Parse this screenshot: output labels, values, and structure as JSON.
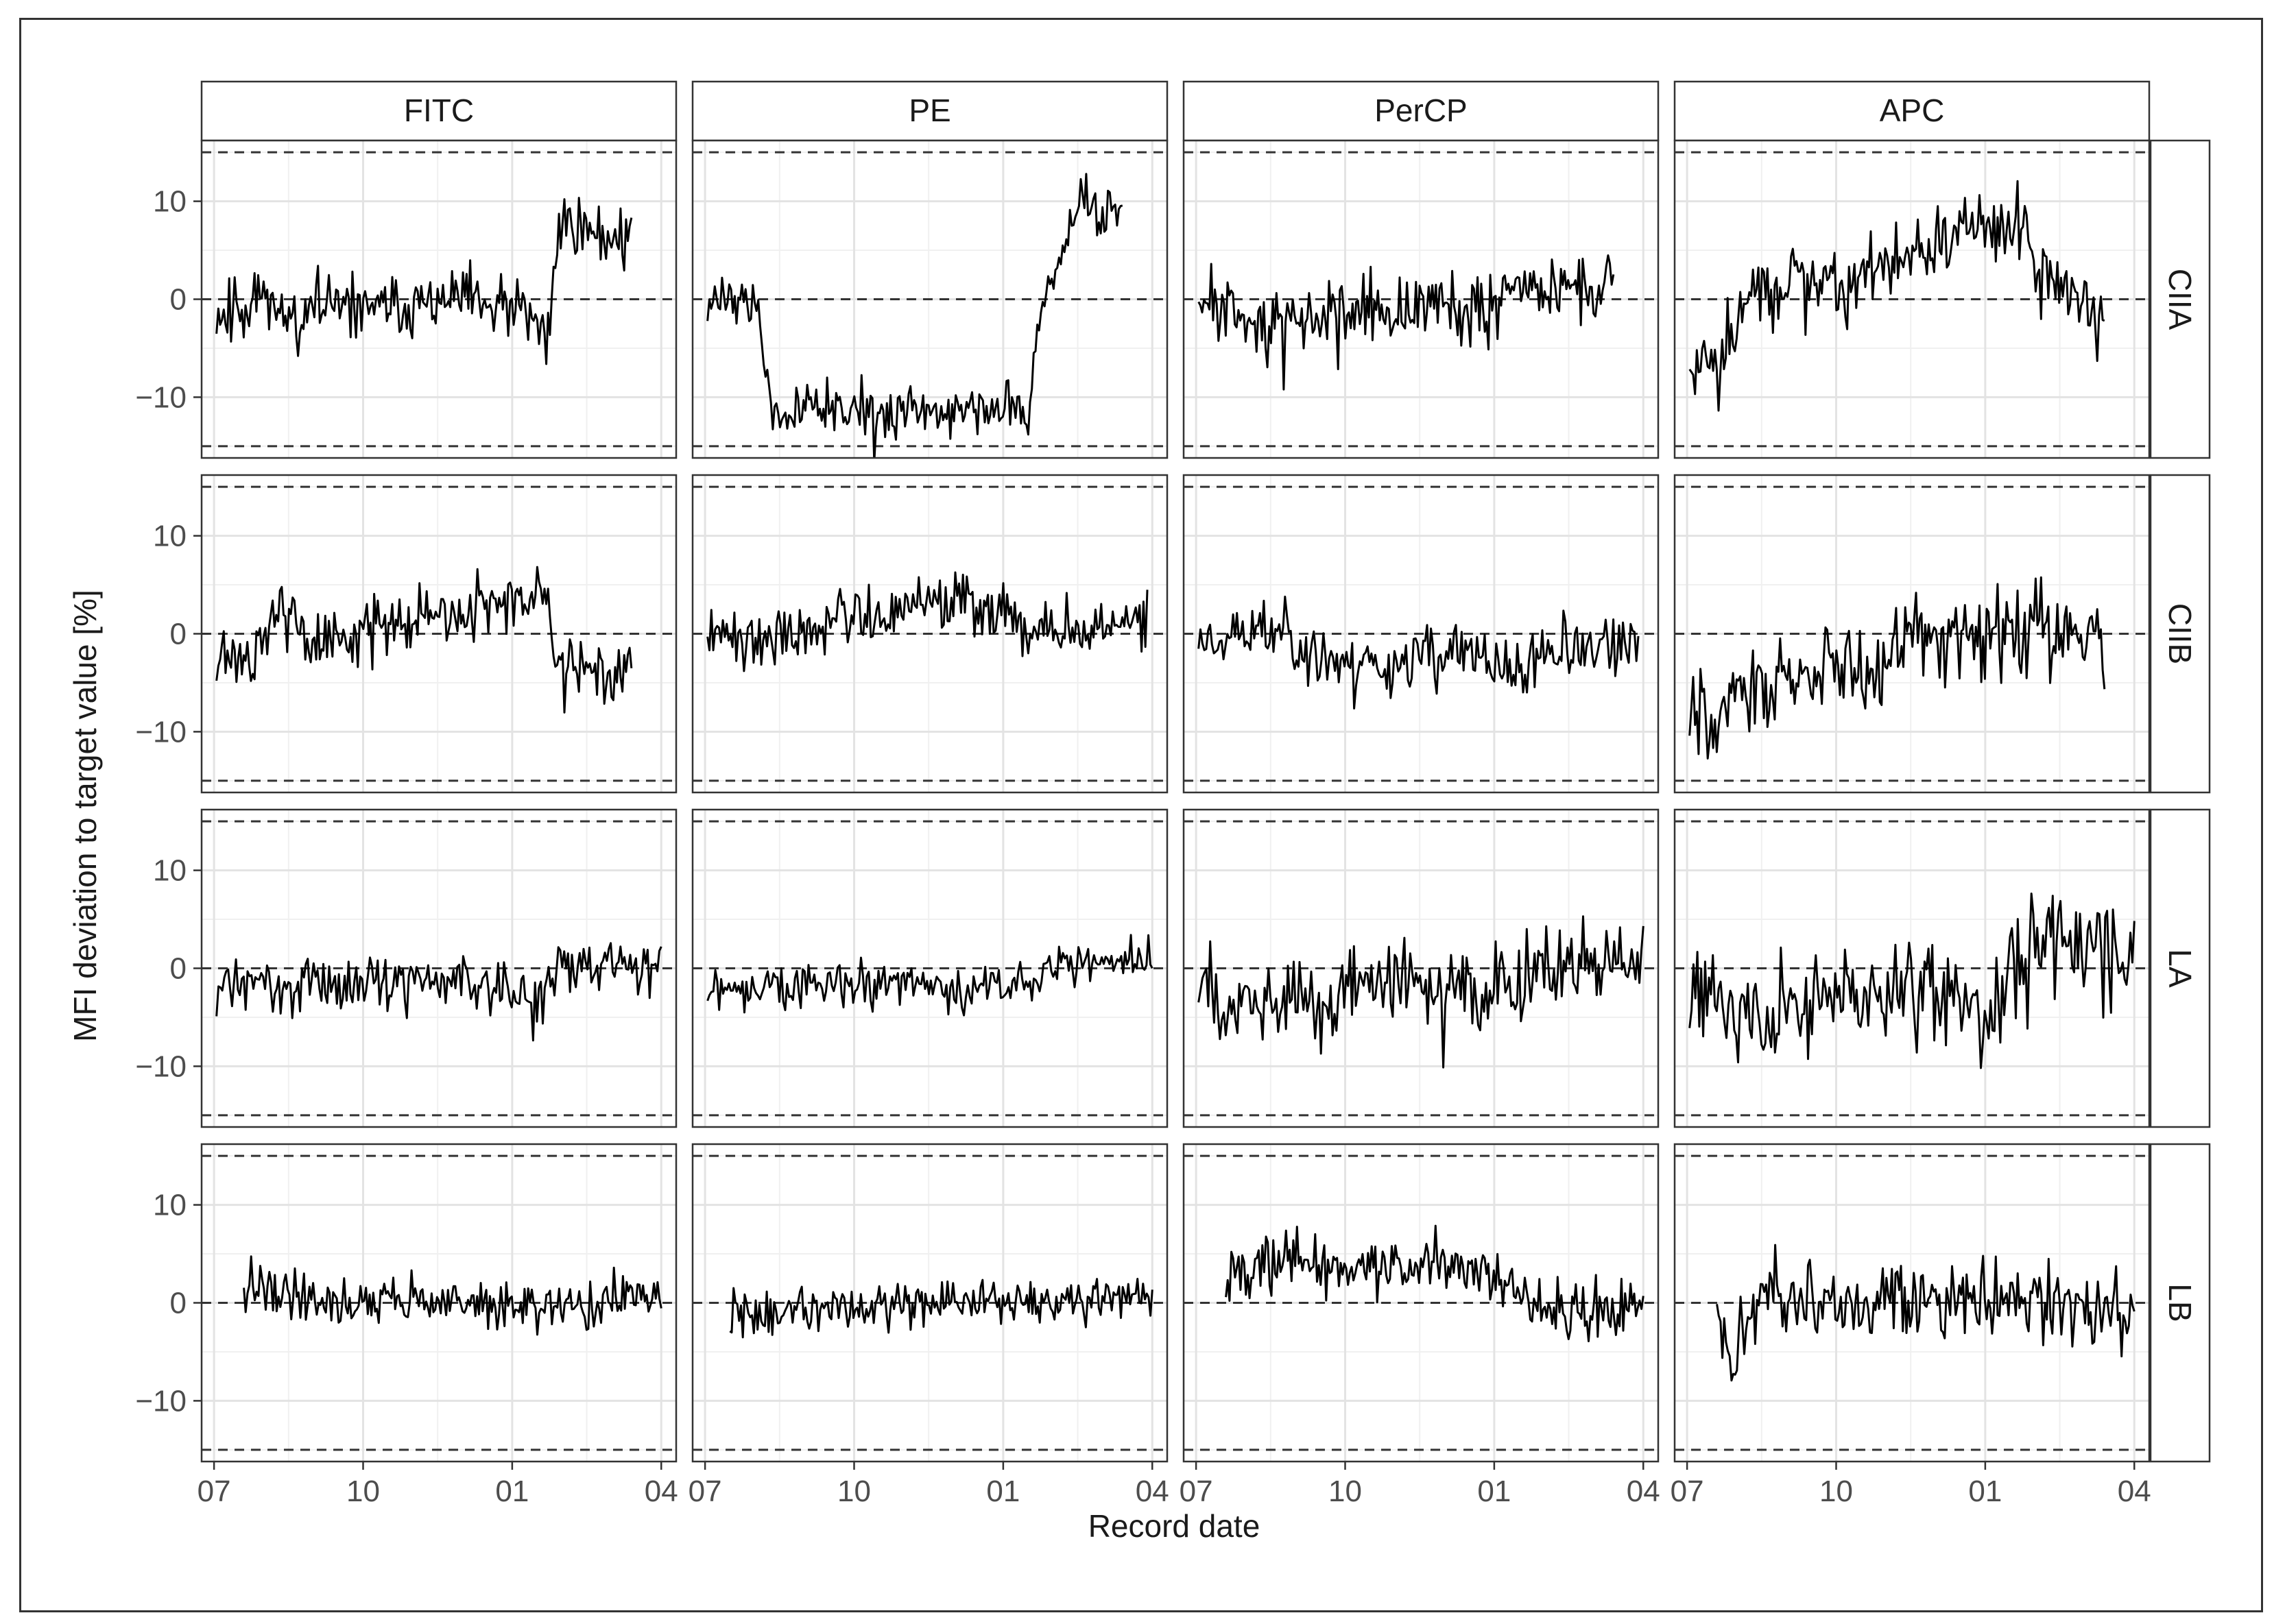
{
  "chart_data": {
    "type": "line",
    "xlabel": "Record date",
    "ylabel": "MFI deviation to target value [%]",
    "x_tick_labels": [
      "07",
      "10",
      "01",
      "04"
    ],
    "x_tick_positions_months_from_start": [
      0,
      3,
      6,
      9
    ],
    "x_range_months": [
      -0.25,
      9.3
    ],
    "y_ticks": [
      10,
      0,
      -10
    ],
    "y_tick_labels": [
      "10",
      "0",
      "−10"
    ],
    "ylim": [
      -16.2,
      16.2
    ],
    "reference_lines": [
      -15,
      0,
      15
    ],
    "reference_line_style": "dashed",
    "grid": true,
    "facet_columns": [
      "FITC",
      "PE",
      "PerCP",
      "APC"
    ],
    "facet_rows": [
      "CIIA",
      "CIIB",
      "LA",
      "LB"
    ],
    "line_color": "#000000",
    "panels": [
      {
        "col": "FITC",
        "row": "CIIA",
        "x_start": 0.05,
        "x_end": 8.4,
        "anchors": [
          [
            0.05,
            -1.5
          ],
          [
            0.5,
            -0.5
          ],
          [
            1,
            1
          ],
          [
            1.5,
            -2
          ],
          [
            2,
            -1
          ],
          [
            2.5,
            -1
          ],
          [
            3,
            -0.5
          ],
          [
            3.5,
            -1
          ],
          [
            4,
            -0.5
          ],
          [
            4.5,
            -0.5
          ],
          [
            5,
            0
          ],
          [
            5.5,
            -1
          ],
          [
            6,
            -1
          ],
          [
            6.5,
            -2.5
          ],
          [
            6.7,
            -5
          ],
          [
            6.85,
            4
          ],
          [
            7,
            8.5
          ],
          [
            7.5,
            7
          ],
          [
            8,
            6.5
          ],
          [
            8.4,
            6.5
          ]
        ],
        "noise": 1.6,
        "seed": 11
      },
      {
        "col": "PE",
        "row": "CIIA",
        "x_start": 0.05,
        "x_end": 8.4,
        "anchors": [
          [
            0.05,
            0
          ],
          [
            0.8,
            0
          ],
          [
            1.1,
            -2
          ],
          [
            1.35,
            -12
          ],
          [
            2,
            -11
          ],
          [
            3,
            -11.5
          ],
          [
            4,
            -11.5
          ],
          [
            5,
            -11
          ],
          [
            6.2,
            -11
          ],
          [
            6.5,
            -12.5
          ],
          [
            6.65,
            -5
          ],
          [
            6.9,
            1
          ],
          [
            7.3,
            6
          ],
          [
            7.6,
            10
          ],
          [
            8,
            8
          ],
          [
            8.4,
            8.5
          ]
        ],
        "noise": 1.3,
        "seed": 12
      },
      {
        "col": "PerCP",
        "row": "CIIA",
        "x_start": 0.05,
        "x_end": 8.4,
        "anchors": [
          [
            0.05,
            0
          ],
          [
            0.8,
            -1.5
          ],
          [
            1.5,
            -3
          ],
          [
            2.2,
            -2
          ],
          [
            3,
            -1.5
          ],
          [
            4,
            -1
          ],
          [
            5,
            -0.5
          ],
          [
            6,
            -0.5
          ],
          [
            7,
            1
          ],
          [
            7.5,
            1.5
          ],
          [
            8,
            0.5
          ],
          [
            8.4,
            1.5
          ]
        ],
        "noise": 1.7,
        "seed": 13
      },
      {
        "col": "APC",
        "row": "CIIA",
        "x_start": 0.05,
        "x_end": 8.4,
        "anchors": [
          [
            0.05,
            -6
          ],
          [
            0.3,
            -7.5
          ],
          [
            0.8,
            -4
          ],
          [
            1.2,
            0
          ],
          [
            2,
            1.5
          ],
          [
            3,
            1
          ],
          [
            4,
            3
          ],
          [
            4.8,
            6
          ],
          [
            5.5,
            7
          ],
          [
            6,
            8
          ],
          [
            6.5,
            8
          ],
          [
            6.8,
            7
          ],
          [
            7.1,
            2
          ],
          [
            7.7,
            0.5
          ],
          [
            8.2,
            -2
          ],
          [
            8.4,
            -1.5
          ]
        ],
        "noise": 1.9,
        "seed": 14
      },
      {
        "col": "FITC",
        "row": "CIIB",
        "x_start": 0.05,
        "x_end": 8.4,
        "anchors": [
          [
            0.05,
            -2
          ],
          [
            0.8,
            -2
          ],
          [
            1.2,
            3
          ],
          [
            1.6,
            2
          ],
          [
            2,
            -1
          ],
          [
            3,
            0
          ],
          [
            4,
            1.5
          ],
          [
            4.5,
            2.5
          ],
          [
            5,
            2
          ],
          [
            5.5,
            3
          ],
          [
            6,
            2.5
          ],
          [
            6.5,
            4
          ],
          [
            6.7,
            2
          ],
          [
            6.9,
            -2.5
          ],
          [
            7.5,
            -4
          ],
          [
            8,
            -4
          ],
          [
            8.4,
            -3
          ]
        ],
        "noise": 1.6,
        "seed": 21
      },
      {
        "col": "PE",
        "row": "CIIB",
        "x_start": 0.05,
        "x_end": 8.9,
        "anchors": [
          [
            0.05,
            0
          ],
          [
            1,
            -0.5
          ],
          [
            2,
            1
          ],
          [
            3,
            2
          ],
          [
            4,
            2.5
          ],
          [
            4.7,
            3.5
          ],
          [
            5.5,
            3
          ],
          [
            6,
            1
          ],
          [
            7,
            0.5
          ],
          [
            8,
            1
          ],
          [
            8.9,
            2
          ]
        ],
        "noise": 1.5,
        "seed": 22
      },
      {
        "col": "PerCP",
        "row": "CIIB",
        "x_start": 0.05,
        "x_end": 8.9,
        "anchors": [
          [
            0.05,
            -0.5
          ],
          [
            1,
            0
          ],
          [
            1.8,
            1
          ],
          [
            2.2,
            -2
          ],
          [
            3,
            -3
          ],
          [
            4,
            -3
          ],
          [
            5,
            -2
          ],
          [
            6,
            -3
          ],
          [
            6.5,
            -4.5
          ],
          [
            7,
            -2
          ],
          [
            8,
            -2
          ],
          [
            8.9,
            -1
          ]
        ],
        "noise": 1.6,
        "seed": 23
      },
      {
        "col": "APC",
        "row": "CIIB",
        "x_start": 0.05,
        "x_end": 8.4,
        "anchors": [
          [
            0.05,
            -8
          ],
          [
            0.4,
            -9
          ],
          [
            1,
            -6
          ],
          [
            2,
            -5
          ],
          [
            3,
            -3.5
          ],
          [
            4,
            -2
          ],
          [
            5,
            0
          ],
          [
            6,
            0
          ],
          [
            7,
            0.5
          ],
          [
            8,
            0
          ],
          [
            8.4,
            -0.5
          ]
        ],
        "noise": 2.2,
        "seed": 24
      },
      {
        "col": "FITC",
        "row": "LA",
        "x_start": 0.05,
        "x_end": 9.0,
        "anchors": [
          [
            0.05,
            -2
          ],
          [
            1,
            -1.5
          ],
          [
            2,
            -1.5
          ],
          [
            3,
            -1.5
          ],
          [
            4,
            -1.5
          ],
          [
            5,
            -1
          ],
          [
            6,
            -2
          ],
          [
            6.6,
            -3
          ],
          [
            7,
            0
          ],
          [
            8,
            0.5
          ],
          [
            9,
            0.5
          ]
        ],
        "noise": 1.3,
        "seed": 31
      },
      {
        "col": "PE",
        "row": "LA",
        "x_start": 0.05,
        "x_end": 9.0,
        "anchors": [
          [
            0.05,
            -2.5
          ],
          [
            1,
            -2
          ],
          [
            2,
            -1.5
          ],
          [
            3,
            -2
          ],
          [
            4,
            -1.5
          ],
          [
            5,
            -2.5
          ],
          [
            6,
            -2
          ],
          [
            6.5,
            -1
          ],
          [
            7,
            0.5
          ],
          [
            8,
            0.5
          ],
          [
            9,
            0.5
          ]
        ],
        "noise": 1.2,
        "seed": 32
      },
      {
        "col": "PerCP",
        "row": "LA",
        "x_start": 0.05,
        "x_end": 9.0,
        "anchors": [
          [
            0.05,
            -1
          ],
          [
            1,
            -3.5
          ],
          [
            2,
            -3
          ],
          [
            3,
            -2
          ],
          [
            4,
            -2
          ],
          [
            5,
            -2
          ],
          [
            6,
            -2.5
          ],
          [
            7,
            0
          ],
          [
            8,
            0.5
          ],
          [
            9,
            0
          ]
        ],
        "noise": 2.2,
        "seed": 33
      },
      {
        "col": "APC",
        "row": "LA",
        "x_start": 0.05,
        "x_end": 9.0,
        "anchors": [
          [
            0.05,
            -2
          ],
          [
            0.6,
            -4
          ],
          [
            1,
            -5.5
          ],
          [
            2,
            -4
          ],
          [
            3,
            -3
          ],
          [
            4,
            -2
          ],
          [
            5,
            -2
          ],
          [
            5.5,
            -3
          ],
          [
            6,
            -3.5
          ],
          [
            6.5,
            0
          ],
          [
            7,
            2
          ],
          [
            8,
            2.5
          ],
          [
            8.5,
            1
          ],
          [
            9,
            0.5
          ]
        ],
        "noise": 2.6,
        "seed": 34
      },
      {
        "col": "FITC",
        "row": "LB",
        "x_start": 0.6,
        "x_end": 9.0,
        "anchors": [
          [
            0.6,
            0
          ],
          [
            0.9,
            2
          ],
          [
            1.5,
            1
          ],
          [
            2,
            0.5
          ],
          [
            3,
            0
          ],
          [
            4,
            0.5
          ],
          [
            5,
            0
          ],
          [
            6,
            -0.5
          ],
          [
            7,
            -0.5
          ],
          [
            8,
            0
          ],
          [
            9,
            1
          ]
        ],
        "noise": 1.2,
        "seed": 41
      },
      {
        "col": "PE",
        "row": "LB",
        "x_start": 0.5,
        "x_end": 9.0,
        "anchors": [
          [
            0.5,
            -1.5
          ],
          [
            1,
            -1
          ],
          [
            2,
            -1
          ],
          [
            3,
            -0.5
          ],
          [
            4,
            0
          ],
          [
            5,
            0
          ],
          [
            6,
            0
          ],
          [
            7,
            0
          ],
          [
            8,
            0.5
          ],
          [
            9,
            1
          ]
        ],
        "noise": 1.2,
        "seed": 42
      },
      {
        "col": "PerCP",
        "row": "LB",
        "x_start": 0.6,
        "x_end": 9.0,
        "anchors": [
          [
            0.6,
            3
          ],
          [
            1.5,
            4
          ],
          [
            2,
            4
          ],
          [
            3,
            4
          ],
          [
            4,
            3.5
          ],
          [
            5,
            4
          ],
          [
            6,
            3
          ],
          [
            6.5,
            2
          ],
          [
            6.8,
            -0.5
          ],
          [
            7.5,
            -1
          ],
          [
            8,
            -0.5
          ],
          [
            9,
            -0.5
          ]
        ],
        "noise": 1.5,
        "seed": 43
      },
      {
        "col": "APC",
        "row": "LB",
        "x_start": 0.6,
        "x_end": 9.0,
        "anchors": [
          [
            0.6,
            0
          ],
          [
            0.7,
            -4
          ],
          [
            0.9,
            -5
          ],
          [
            1.1,
            -3
          ],
          [
            1.5,
            0
          ],
          [
            2,
            0
          ],
          [
            3,
            0
          ],
          [
            4,
            0
          ],
          [
            5,
            0
          ],
          [
            6,
            0
          ],
          [
            7,
            0
          ],
          [
            8,
            -0.5
          ],
          [
            9,
            -0.5
          ]
        ],
        "noise": 2.0,
        "seed": 44
      }
    ]
  }
}
